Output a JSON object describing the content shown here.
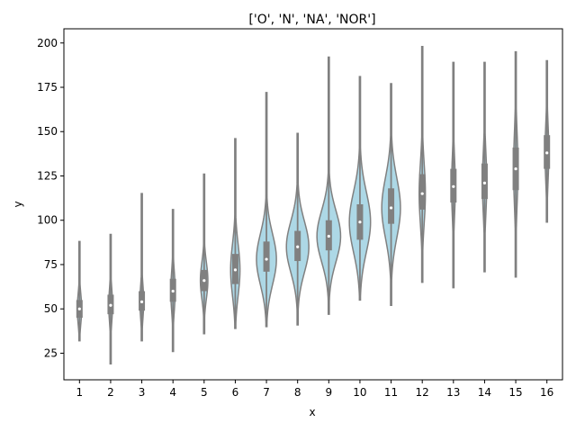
{
  "chart_data": {
    "type": "violin",
    "title": "['O', 'N', 'NA', 'NOR']",
    "xlabel": "x",
    "ylabel": "y",
    "categories": [
      "1",
      "2",
      "3",
      "4",
      "5",
      "6",
      "7",
      "8",
      "9",
      "10",
      "11",
      "12",
      "13",
      "14",
      "15",
      "16"
    ],
    "yticks": [
      25,
      50,
      75,
      100,
      125,
      150,
      175,
      200
    ],
    "ylim": [
      10,
      208
    ],
    "grid": false,
    "colors": {
      "violin_fill": "#add8e6",
      "violin_edge": "#808080",
      "box": "#808080",
      "median": "#ffffff"
    },
    "series": [
      {
        "category": "1",
        "min": 32,
        "q1": 45,
        "median": 50,
        "q3": 55,
        "max": 88,
        "width": 0.07
      },
      {
        "category": "2",
        "min": 19,
        "q1": 47,
        "median": 52,
        "q3": 58,
        "max": 92,
        "width": 0.06
      },
      {
        "category": "3",
        "min": 32,
        "q1": 49,
        "median": 54,
        "q3": 60,
        "max": 115,
        "width": 0.06
      },
      {
        "category": "4",
        "min": 26,
        "q1": 54,
        "median": 60,
        "q3": 67,
        "max": 106,
        "width": 0.07
      },
      {
        "category": "5",
        "min": 36,
        "q1": 60,
        "median": 66,
        "q3": 72,
        "max": 126,
        "width": 0.12
      },
      {
        "category": "6",
        "min": 39,
        "q1": 64,
        "median": 72,
        "q3": 81,
        "max": 146,
        "width": 0.15
      },
      {
        "category": "7",
        "min": 40,
        "q1": 71,
        "median": 78,
        "q3": 88,
        "max": 172,
        "width": 0.32
      },
      {
        "category": "8",
        "min": 41,
        "q1": 77,
        "median": 85,
        "q3": 94,
        "max": 149,
        "width": 0.36
      },
      {
        "category": "9",
        "min": 47,
        "q1": 83,
        "median": 91,
        "q3": 100,
        "max": 192,
        "width": 0.38
      },
      {
        "category": "10",
        "min": 55,
        "q1": 89,
        "median": 99,
        "q3": 109,
        "max": 181,
        "width": 0.34
      },
      {
        "category": "11",
        "min": 52,
        "q1": 98,
        "median": 107,
        "q3": 118,
        "max": 177,
        "width": 0.3
      },
      {
        "category": "12",
        "min": 65,
        "q1": 106,
        "median": 115,
        "q3": 126,
        "max": 198,
        "width": 0.1
      },
      {
        "category": "13",
        "min": 62,
        "q1": 110,
        "median": 119,
        "q3": 129,
        "max": 189,
        "width": 0.06
      },
      {
        "category": "14",
        "min": 71,
        "q1": 112,
        "median": 121,
        "q3": 132,
        "max": 189,
        "width": 0.07
      },
      {
        "category": "15",
        "min": 68,
        "q1": 117,
        "median": 129,
        "q3": 141,
        "max": 195,
        "width": 0.07
      },
      {
        "category": "16",
        "min": 99,
        "q1": 129,
        "median": 138,
        "q3": 148,
        "max": 190,
        "width": 0.06
      }
    ]
  }
}
